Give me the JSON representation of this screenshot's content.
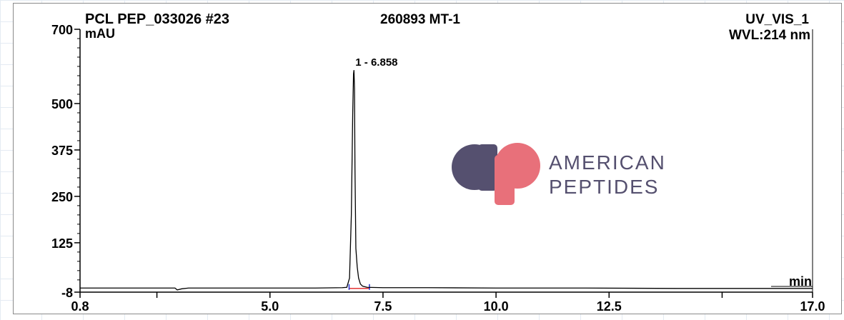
{
  "header": {
    "sample": "PCL PEP_033026 #23",
    "batch": "260893 MT-1",
    "channel": "UV_VIS_1",
    "wavelength": "WVL:214 nm",
    "y_unit": "mAU",
    "x_unit": "min"
  },
  "watermark": {
    "line1": "AMERICAN",
    "line2": "PEPTIDES",
    "colors": {
      "a": "#55506f",
      "p": "#e8707a",
      "text": "#55506f"
    }
  },
  "chart_data": {
    "type": "line",
    "title": "PCL PEP_033026 #23",
    "xlabel": "min",
    "ylabel": "mAU",
    "xlim": [
      0.8,
      17.0
    ],
    "ylim": [
      -8,
      700
    ],
    "x_ticks": [
      "0.8",
      "5.0",
      "7.5",
      "10.0",
      "12.5",
      "17.0"
    ],
    "y_ticks": [
      "700",
      "500",
      "375",
      "250",
      "125",
      "-8"
    ],
    "grid": false,
    "colors": {
      "trace": "#000000",
      "baseline": "#e02020",
      "marker": "#2030d0"
    },
    "peaks": [
      {
        "label": "1 - 6.858",
        "retention_time": 6.858,
        "height": 590
      }
    ],
    "series": [
      {
        "x": [
          0.8,
          1.5,
          2.4,
          2.9,
          2.95,
          3.05,
          3.2,
          4.5,
          6.0,
          6.6,
          6.7,
          6.76,
          6.8,
          6.83,
          6.848,
          6.858,
          6.87,
          6.88,
          6.9,
          6.93,
          6.96,
          7.0,
          7.05,
          7.15,
          7.5,
          8.5,
          10.0,
          11.0,
          12.0,
          14.0,
          17.0
        ],
        "y": [
          3,
          3,
          3,
          3,
          -2,
          1,
          3,
          3,
          3,
          4,
          5,
          30,
          200,
          470,
          580,
          590,
          540,
          330,
          110,
          60,
          30,
          14,
          8,
          5,
          4,
          4,
          3,
          3,
          3,
          2,
          2
        ]
      }
    ]
  }
}
